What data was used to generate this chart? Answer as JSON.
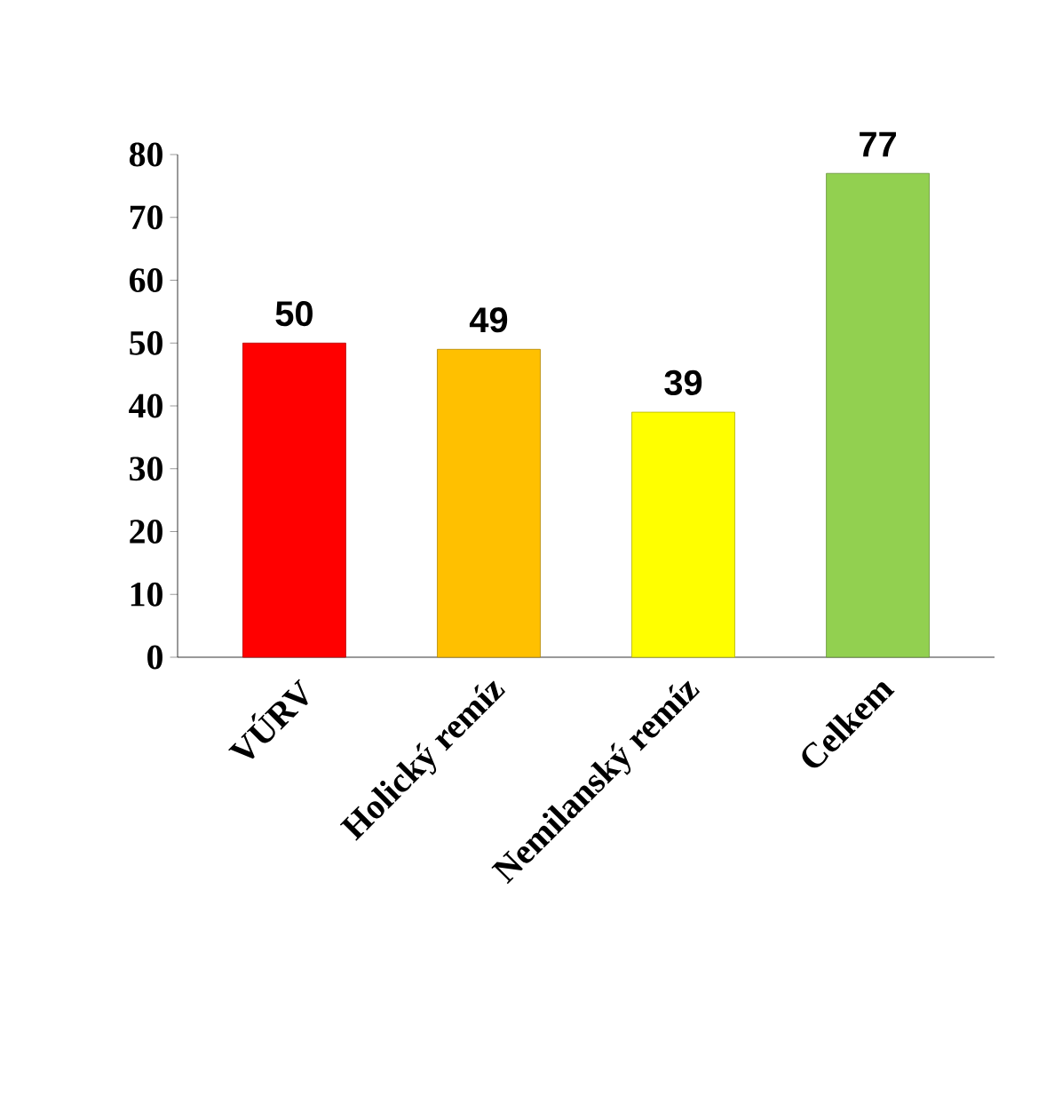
{
  "chart_data": {
    "type": "bar",
    "categories": [
      "VÚRV",
      "Holický remíz",
      "Nemilanský remíz",
      "Celkem"
    ],
    "values": [
      50,
      49,
      39,
      77
    ],
    "colors": [
      "#ff0000",
      "#ffc000",
      "#ffff00",
      "#92d050"
    ],
    "ylim": [
      0,
      80
    ],
    "yticks": [
      0,
      10,
      20,
      30,
      40,
      50,
      60,
      70,
      80
    ],
    "data_labels": true
  }
}
